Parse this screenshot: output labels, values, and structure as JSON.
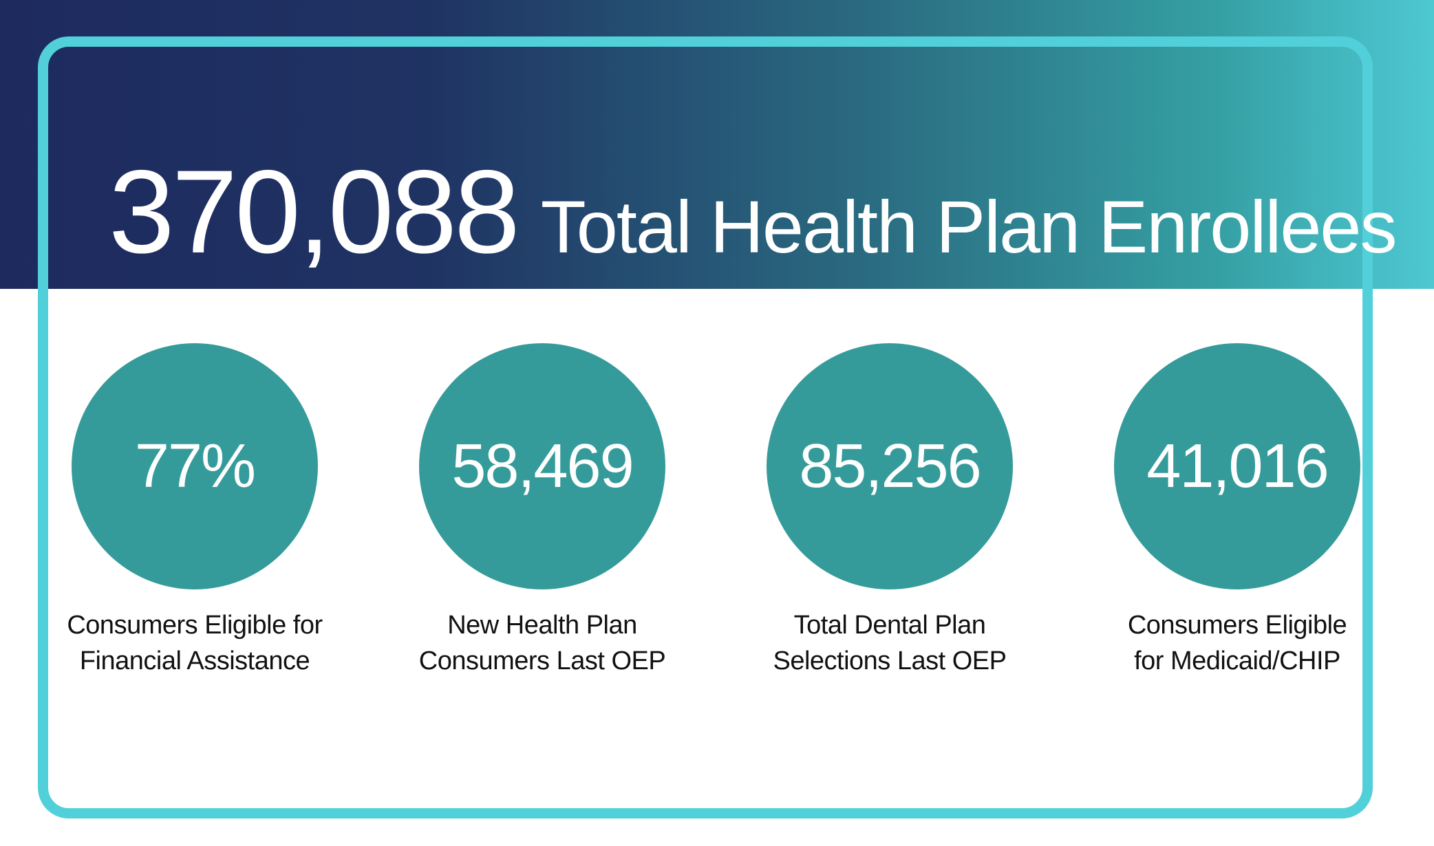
{
  "header": {
    "total_value": "370,088",
    "total_label": "Total Health Plan Enrollees"
  },
  "stats": [
    {
      "value": "77%",
      "label_line1": "Consumers Eligible for",
      "label_line2": "Financial Assistance"
    },
    {
      "value": "58,469",
      "label_line1": "New Health Plan",
      "label_line2": "Consumers Last OEP"
    },
    {
      "value": "85,256",
      "label_line1": "Total Dental Plan",
      "label_line2": "Selections Last OEP"
    },
    {
      "value": "41,016",
      "label_line1": "Consumers Eligible",
      "label_line2": "for Medicaid/CHIP"
    }
  ],
  "colors": {
    "navy": "#1e2a5e",
    "teal_circle": "#359b9a",
    "frame_cyan": "#52d0da"
  }
}
